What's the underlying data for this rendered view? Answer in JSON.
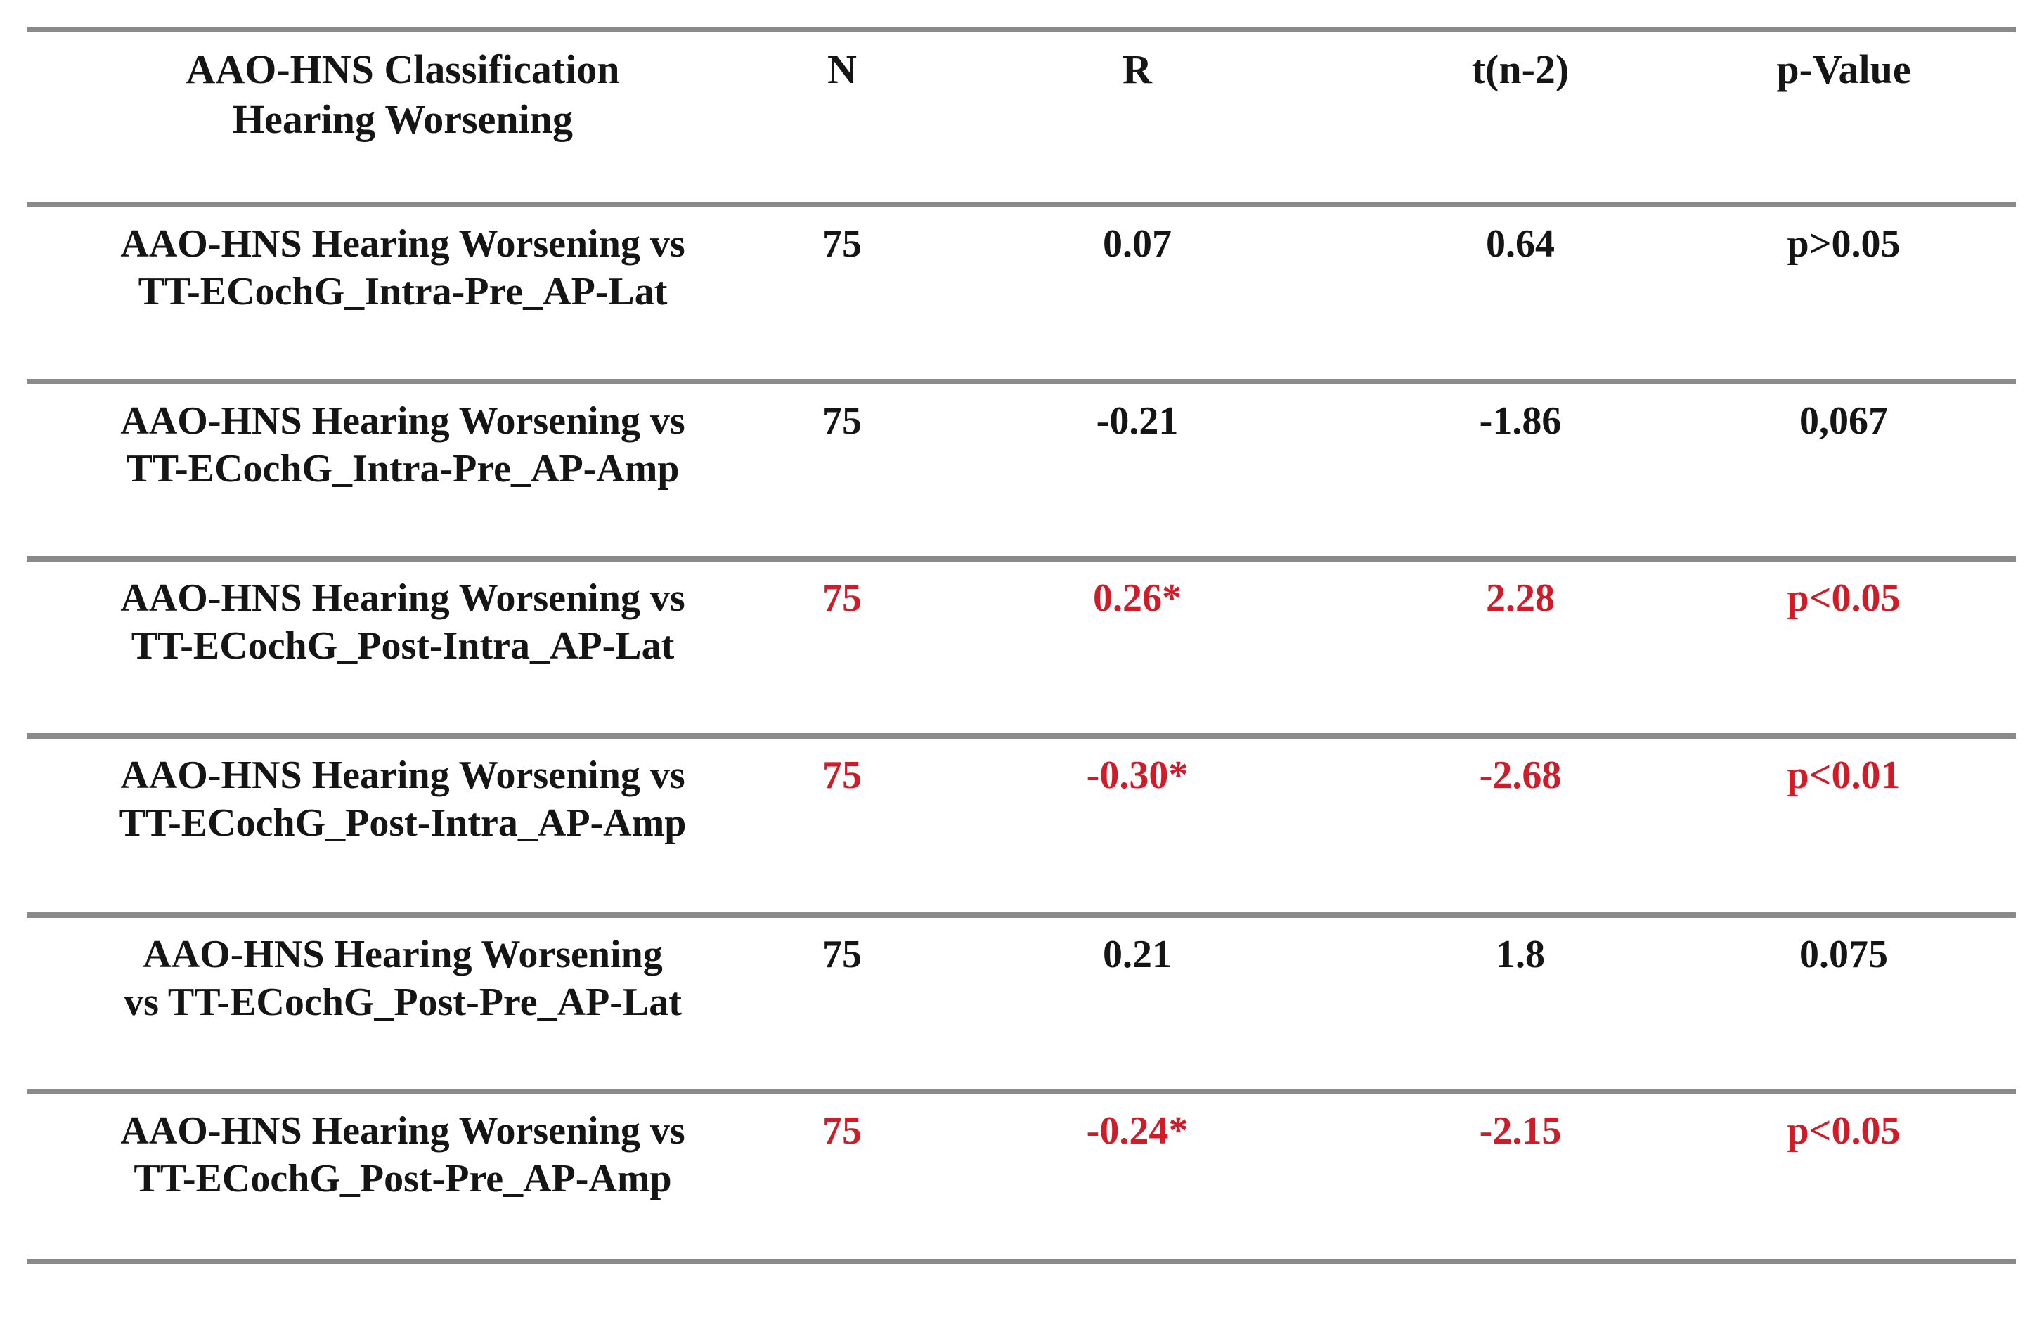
{
  "colors": {
    "highlight_red": "#d01b28",
    "divider_gray": "#8a8a8a",
    "text_black": "#151515",
    "background": "#ffffff"
  },
  "table": {
    "header": {
      "classification": "AAO-HNS Classification\nHearing Worsening",
      "n": "N",
      "r": "R",
      "t": "t(n-2)",
      "p": "p-Value"
    },
    "rows": [
      {
        "label": "AAO-HNS Hearing Worsening vs\nTT-ECochG_Intra-Pre_AP-Lat",
        "n": "75",
        "r": "0.07",
        "t": "0.64",
        "p": "p>0.05",
        "significant": false
      },
      {
        "label": "AAO-HNS Hearing Worsening vs\nTT-ECochG_Intra-Pre_AP-Amp",
        "n": "75",
        "r": "-0.21",
        "t": "-1.86",
        "p": "0,067",
        "significant": false
      },
      {
        "label": "AAO-HNS Hearing Worsening vs\nTT-ECochG_Post-Intra_AP-Lat",
        "n": "75",
        "r": "0.26*",
        "t": "2.28",
        "p": "p<0.05",
        "significant": true
      },
      {
        "label": "AAO-HNS Hearing Worsening vs\nTT-ECochG_Post-Intra_AP-Amp",
        "n": "75",
        "r": "-0.30*",
        "t": "-2.68",
        "p": "p<0.01",
        "significant": true
      },
      {
        "label": "AAO-HNS Hearing Worsening\nvs TT-ECochG_Post-Pre_AP-Lat",
        "n": "75",
        "r": "0.21",
        "t": "1.8",
        "p": "0.075",
        "significant": false
      },
      {
        "label": "AAO-HNS Hearing Worsening vs\nTT-ECochG_Post-Pre_AP-Amp",
        "n": "75",
        "r": "-0.24*",
        "t": "-2.15",
        "p": "p<0.05",
        "significant": true
      }
    ]
  }
}
